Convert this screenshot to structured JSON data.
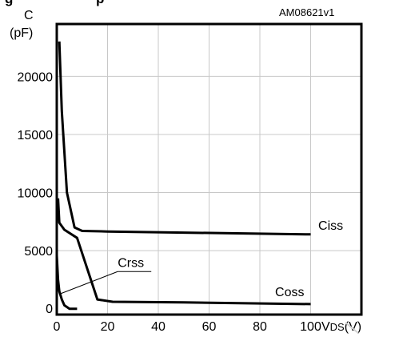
{
  "chart_data": {
    "type": "line",
    "title_visible_fragment": "g",
    "title_visible_fragment_2": "p",
    "figure_code": "AM08621v1",
    "y_axis_label_line1": "C",
    "y_axis_label_line2": "(pF)",
    "x_axis_label": "VDS(V)",
    "x_ticks": [
      "0",
      "20",
      "40",
      "60",
      "80",
      "100"
    ],
    "y_ticks": [
      "0",
      "5000",
      "10000",
      "15000",
      "20000"
    ],
    "xlim": [
      0,
      120
    ],
    "ylim": [
      -500,
      24500
    ],
    "grid": true,
    "series": [
      {
        "name": "Ciss",
        "points": [
          [
            1,
            23000
          ],
          [
            2,
            17000
          ],
          [
            4,
            10000
          ],
          [
            7,
            7000
          ],
          [
            10,
            6700
          ],
          [
            20,
            6650
          ],
          [
            50,
            6550
          ],
          [
            100,
            6400
          ]
        ],
        "label_at": [
          103,
          6800
        ]
      },
      {
        "name": "Coss",
        "points": [
          [
            0.5,
            9500
          ],
          [
            1,
            7400
          ],
          [
            3,
            6800
          ],
          [
            8,
            6100
          ],
          [
            16,
            800
          ],
          [
            22,
            600
          ],
          [
            50,
            550
          ],
          [
            100,
            400
          ]
        ],
        "label_at": [
          86,
          1100
        ]
      },
      {
        "name": "Crss",
        "points": [
          [
            0,
            4600
          ],
          [
            0.5,
            2500
          ],
          [
            1,
            1500
          ],
          [
            2,
            800
          ],
          [
            3,
            300
          ],
          [
            5,
            0
          ],
          [
            8,
            0
          ]
        ],
        "label_at": [
          24,
          3600
        ],
        "leader_from": [
          24,
          3200
        ],
        "leader_to": [
          1.5,
          1300
        ]
      }
    ]
  }
}
